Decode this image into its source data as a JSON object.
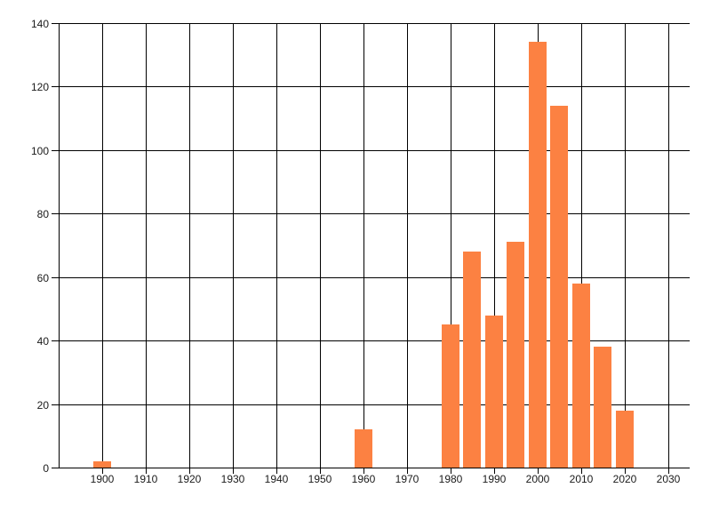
{
  "chart_data": {
    "type": "bar",
    "title": "",
    "xlabel": "",
    "ylabel": "",
    "x": [
      1900,
      1960,
      1980,
      1985,
      1990,
      1995,
      2000,
      2005,
      2010,
      2015,
      2020
    ],
    "values": [
      2,
      12,
      45,
      68,
      48,
      71,
      134,
      114,
      58,
      38,
      18
    ],
    "xlim": [
      1890,
      2035
    ],
    "ylim": [
      0,
      140
    ],
    "x_ticks": [
      1900,
      1910,
      1920,
      1930,
      1940,
      1950,
      1960,
      1970,
      1980,
      1990,
      2000,
      2010,
      2020,
      2030
    ],
    "y_ticks": [
      0,
      20,
      40,
      60,
      80,
      100,
      120,
      140
    ],
    "grid": true,
    "legend": "none",
    "colors": {
      "bar": "#fc8142",
      "grid": "#000000",
      "axis": "#000000",
      "text": "#1a1a1a",
      "background": "#ffffff"
    }
  }
}
